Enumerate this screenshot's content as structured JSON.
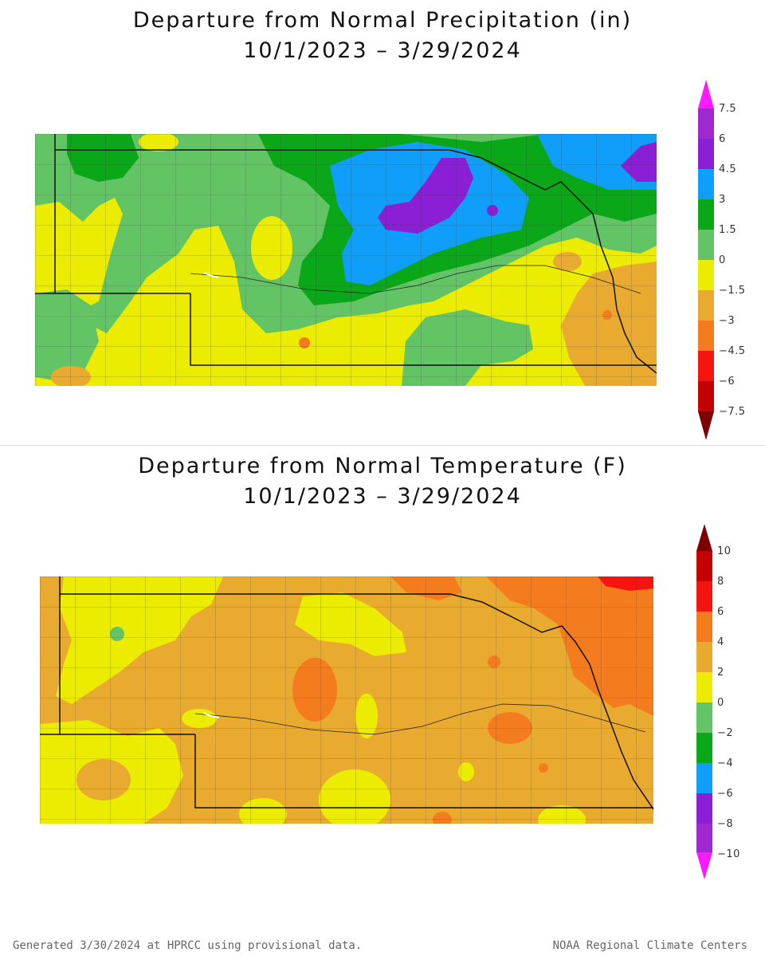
{
  "precip": {
    "title_line1": "Departure from Normal Precipitation (in)",
    "title_line2": "10/1/2023 – 3/29/2024",
    "legend": {
      "labels": [
        "7.5",
        "6",
        "4.5",
        "3",
        "1.5",
        "0",
        "−1.5",
        "−3",
        "−4.5",
        "−6",
        "−7.5"
      ],
      "colors": [
        "#ff19ff",
        "#9f29cf",
        "#8a1fd6",
        "#0f9ffa",
        "#0aa818",
        "#63c466",
        "#ecec00",
        "#e9ab2f",
        "#f47c1f",
        "#f51410",
        "#c50000",
        "#7e0000"
      ]
    }
  },
  "temp": {
    "title_line1": "Departure from Normal Temperature (F)",
    "title_line2": "10/1/2023 – 3/29/2024",
    "legend": {
      "labels": [
        "10",
        "8",
        "6",
        "4",
        "2",
        "0",
        "−2",
        "−4",
        "−6",
        "−8",
        "−10"
      ],
      "colors": [
        "#7e0000",
        "#c50000",
        "#f51410",
        "#f47c1f",
        "#e9ab2f",
        "#ecec00",
        "#63c466",
        "#0aa818",
        "#0f9ffa",
        "#8a1fd6",
        "#9f29cf",
        "#ff19ff"
      ]
    }
  },
  "footer": {
    "left": "Generated 3/30/2024 at HPRCC using provisional data.",
    "right": "NOAA Regional Climate Centers"
  }
}
